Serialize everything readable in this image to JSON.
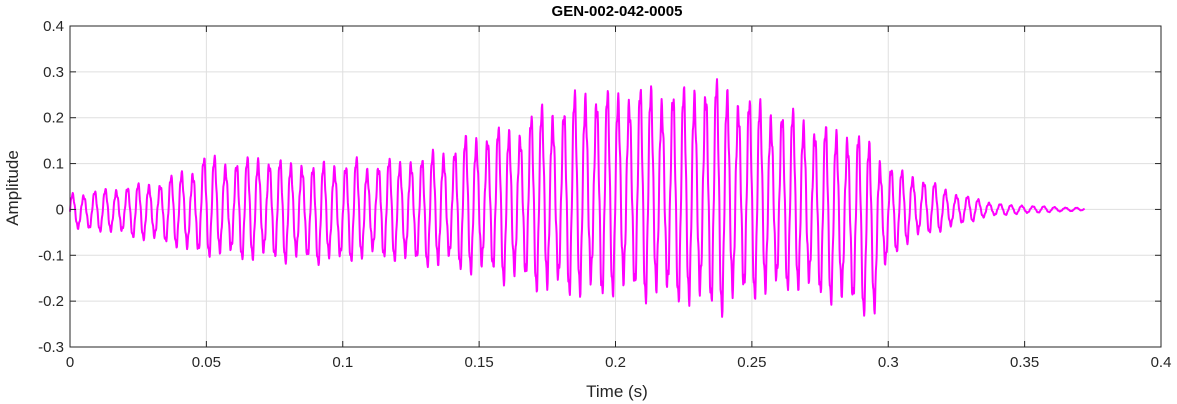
{
  "chart_data": {
    "type": "line",
    "title": "GEN-002-042-0005",
    "xlabel": "Time (s)",
    "ylabel": "Amplitude",
    "xlim": [
      0,
      0.4
    ],
    "ylim": [
      -0.3,
      0.4
    ],
    "x_ticks": [
      0,
      0.05,
      0.1,
      0.15,
      0.2,
      0.25,
      0.3,
      0.35,
      0.4
    ],
    "x_tick_labels": [
      "0",
      "0.05",
      "0.1",
      "0.15",
      "0.2",
      "0.25",
      "0.3",
      "0.35",
      "0.4"
    ],
    "y_ticks": [
      -0.3,
      -0.2,
      -0.1,
      0,
      0.1,
      0.2,
      0.3,
      0.4
    ],
    "y_tick_labels": [
      "-0.3",
      "-0.2",
      "-0.1",
      "0",
      "0.1",
      "0.2",
      "0.3",
      "0.4"
    ],
    "grid": true,
    "colors": {
      "line": "#ff00ff",
      "grid": "#dfdfdf",
      "axes": "#262626"
    },
    "series": [
      {
        "color": "#ff00ff",
        "x": [
          0.0,
          0.005,
          0.01,
          0.015,
          0.02,
          0.025,
          0.03,
          0.035,
          0.04,
          0.045,
          0.05,
          0.055,
          0.06,
          0.065,
          0.07,
          0.075,
          0.08,
          0.085,
          0.09,
          0.095,
          0.1,
          0.105,
          0.11,
          0.115,
          0.12,
          0.125,
          0.13,
          0.135,
          0.14,
          0.145,
          0.15,
          0.155,
          0.16,
          0.165,
          0.17,
          0.175,
          0.18,
          0.185,
          0.19,
          0.195,
          0.2,
          0.205,
          0.21,
          0.215,
          0.22,
          0.225,
          0.23,
          0.235,
          0.24,
          0.245,
          0.25,
          0.255,
          0.26,
          0.265,
          0.27,
          0.275,
          0.28,
          0.285,
          0.29,
          0.295,
          0.3,
          0.305,
          0.31,
          0.315,
          0.32,
          0.325,
          0.33,
          0.335,
          0.34,
          0.345,
          0.35,
          0.355,
          0.36,
          0.365,
          0.37,
          0.372
        ],
        "upper": [
          0.04,
          0.04,
          0.045,
          0.05,
          0.055,
          0.06,
          0.065,
          0.07,
          0.09,
          0.1,
          0.13,
          0.12,
          0.115,
          0.12,
          0.13,
          0.12,
          0.11,
          0.12,
          0.1,
          0.12,
          0.11,
          0.12,
          0.1,
          0.125,
          0.11,
          0.13,
          0.12,
          0.15,
          0.14,
          0.17,
          0.18,
          0.19,
          0.19,
          0.2,
          0.23,
          0.25,
          0.24,
          0.27,
          0.29,
          0.28,
          0.27,
          0.29,
          0.29,
          0.28,
          0.29,
          0.28,
          0.3,
          0.31,
          0.29,
          0.28,
          0.26,
          0.25,
          0.24,
          0.23,
          0.22,
          0.2,
          0.19,
          0.2,
          0.18,
          0.15,
          0.11,
          0.09,
          0.08,
          0.07,
          0.05,
          0.04,
          0.03,
          0.02,
          0.015,
          0.01,
          0.01,
          0.008,
          0.006,
          0.005,
          0.004,
          0.003
        ],
        "lower": [
          -0.05,
          -0.05,
          -0.05,
          -0.055,
          -0.06,
          -0.07,
          -0.075,
          -0.08,
          -0.09,
          -0.11,
          -0.11,
          -0.11,
          -0.115,
          -0.12,
          -0.12,
          -0.12,
          -0.125,
          -0.12,
          -0.13,
          -0.12,
          -0.13,
          -0.12,
          -0.11,
          -0.12,
          -0.12,
          -0.13,
          -0.13,
          -0.14,
          -0.13,
          -0.15,
          -0.16,
          -0.15,
          -0.18,
          -0.17,
          -0.19,
          -0.2,
          -0.2,
          -0.21,
          -0.21,
          -0.22,
          -0.2,
          -0.21,
          -0.22,
          -0.21,
          -0.23,
          -0.22,
          -0.24,
          -0.24,
          -0.25,
          -0.22,
          -0.21,
          -0.21,
          -0.2,
          -0.19,
          -0.2,
          -0.21,
          -0.22,
          -0.23,
          -0.24,
          -0.25,
          -0.12,
          -0.09,
          -0.07,
          -0.06,
          -0.05,
          -0.04,
          -0.03,
          -0.02,
          -0.015,
          -0.012,
          -0.01,
          -0.008,
          -0.006,
          -0.005,
          -0.004,
          0.0
        ],
        "approx_cycle_period_s": 0.004
      }
    ]
  }
}
